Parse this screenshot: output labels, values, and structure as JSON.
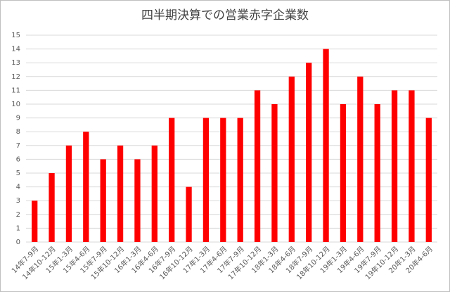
{
  "chart_data": {
    "type": "bar",
    "title": "四半期決算での営業赤字企業数",
    "categories": [
      "14年7-9月",
      "14年10-12月",
      "15年1-3月",
      "15年4-6月",
      "15年7-9月",
      "15年10-12月",
      "16年1-3月",
      "16年4-6月",
      "16年7-9月",
      "16年10-12月",
      "17年1-3月",
      "17年4-6月",
      "17年7-9月",
      "17年10-12月",
      "18年1-3月",
      "18年4-6月",
      "18年7-9月",
      "18年10-12月",
      "19年1-3月",
      "19年4-6月",
      "19年7-9月",
      "19年10-12月",
      "20年1-3月",
      "20年4-6月"
    ],
    "values": [
      3,
      5,
      7,
      8,
      6,
      7,
      6,
      7,
      9,
      4,
      9,
      9,
      9,
      11,
      10,
      12,
      13,
      14,
      10,
      12,
      10,
      11,
      11,
      9
    ],
    "color": "#ff0000",
    "ylim": [
      0,
      15
    ],
    "yticks": [
      0,
      1,
      2,
      3,
      4,
      5,
      6,
      7,
      8,
      9,
      10,
      11,
      12,
      13,
      14,
      15
    ],
    "grid": true
  }
}
